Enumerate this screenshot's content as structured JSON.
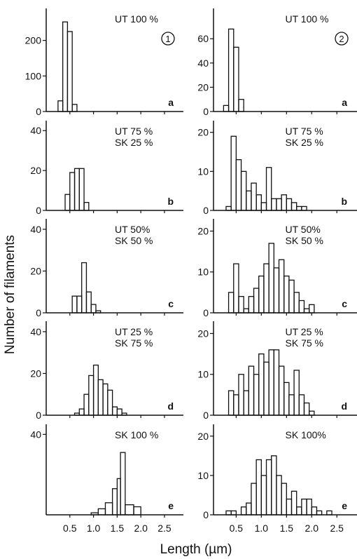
{
  "figure": {
    "y_axis_title": "Number of filaments",
    "x_axis_title": "Length (µm)"
  },
  "chart_data": [
    {
      "type": "bar",
      "figure_number": "1",
      "letter": "a",
      "label_lines": [
        "UT  100 %"
      ],
      "xlim": [
        0.0,
        2.9
      ],
      "ylim": [
        0,
        290
      ],
      "yticks": [
        0,
        100,
        200
      ],
      "xticks": [
        "0.5",
        "1.0",
        "1.5",
        "2.0",
        "2.5"
      ],
      "show_xticks": false,
      "bin_edges": [
        0.25,
        0.35,
        0.45,
        0.55,
        0.65
      ],
      "values": [
        30,
        252,
        225,
        20
      ]
    },
    {
      "type": "bar",
      "figure_number": "",
      "letter": "b",
      "label_lines": [
        "UT 75 %",
        "SK 25 %"
      ],
      "xlim": [
        0.0,
        2.9
      ],
      "ylim": [
        0,
        45
      ],
      "yticks": [
        0,
        20,
        40
      ],
      "xticks": [
        "0.5",
        "1.0",
        "1.5",
        "2.0",
        "2.5"
      ],
      "show_xticks": false,
      "bin_edges": [
        0.4,
        0.5,
        0.6,
        0.7,
        0.8,
        0.9
      ],
      "values": [
        8,
        19,
        21,
        21,
        4
      ]
    },
    {
      "type": "bar",
      "figure_number": "",
      "letter": "c",
      "label_lines": [
        "UT  50%",
        "SK  50 %"
      ],
      "xlim": [
        0.0,
        2.9
      ],
      "ylim": [
        0,
        45
      ],
      "yticks": [
        0,
        20,
        40
      ],
      "xticks": [
        "0.5",
        "1.0",
        "1.5",
        "2.0",
        "2.5"
      ],
      "show_xticks": false,
      "bin_edges": [
        0.55,
        0.65,
        0.75,
        0.85,
        0.95,
        1.05,
        1.15
      ],
      "values": [
        8,
        8,
        24,
        10,
        4,
        1
      ]
    },
    {
      "type": "bar",
      "figure_number": "",
      "letter": "d",
      "label_lines": [
        "UT  25 %",
        "SK  75 %"
      ],
      "xlim": [
        0.0,
        2.9
      ],
      "ylim": [
        0,
        45
      ],
      "yticks": [
        0,
        20,
        40
      ],
      "xticks": [
        "0.5",
        "1.0",
        "1.5",
        "2.0",
        "2.5"
      ],
      "show_xticks": false,
      "bin_edges": [
        0.6,
        0.7,
        0.8,
        0.9,
        1.0,
        1.1,
        1.2,
        1.3,
        1.4,
        1.5,
        1.6,
        1.7
      ],
      "values": [
        1,
        3,
        10,
        19,
        24,
        17,
        15,
        12,
        4,
        3,
        1
      ]
    },
    {
      "type": "bar",
      "figure_number": "",
      "letter": "e",
      "label_lines": [
        "SK  100 %"
      ],
      "xlim": [
        0.0,
        2.9
      ],
      "ylim": [
        0,
        45
      ],
      "yticks": [
        40
      ],
      "xticks": [
        "0.5",
        "1.0",
        "1.5",
        "2.0",
        "2.5"
      ],
      "show_xticks": true,
      "bin_edges": [
        0.95,
        1.1,
        1.25,
        1.4,
        1.5,
        1.57,
        1.67,
        1.85,
        2.0
      ],
      "values": [
        1,
        3,
        6,
        13,
        18,
        31,
        5,
        4
      ]
    },
    {
      "type": "bar",
      "figure_number": "2",
      "letter": "a",
      "label_lines": [
        "UT  100 %"
      ],
      "xlim": [
        0.05,
        2.9
      ],
      "ylim": [
        0,
        85
      ],
      "yticks": [
        0,
        20,
        40,
        60
      ],
      "xticks": [
        "0.5",
        "1.0",
        "1.5",
        "2.0",
        "2.5"
      ],
      "show_xticks": false,
      "bin_edges": [
        0.25,
        0.35,
        0.45,
        0.55,
        0.65
      ],
      "values": [
        5,
        68,
        53,
        10
      ]
    },
    {
      "type": "bar",
      "figure_number": "",
      "letter": "b",
      "label_lines": [
        "UT 75 %",
        "SK 25 %"
      ],
      "xlim": [
        0.05,
        2.9
      ],
      "ylim": [
        0,
        23
      ],
      "yticks": [
        0,
        10,
        20
      ],
      "xticks": [
        "0.5",
        "1.0",
        "1.5",
        "2.0",
        "2.5"
      ],
      "show_xticks": false,
      "bin_edges": [
        0.3,
        0.4,
        0.5,
        0.6,
        0.7,
        0.8,
        0.9,
        1.0,
        1.1,
        1.2,
        1.3,
        1.4,
        1.5,
        1.6,
        1.7,
        1.8,
        1.9
      ],
      "values": [
        1,
        19,
        13,
        10,
        5,
        7,
        4,
        2,
        11,
        3,
        3,
        4,
        3,
        2,
        1,
        1
      ]
    },
    {
      "type": "bar",
      "figure_number": "",
      "letter": "c",
      "label_lines": [
        "UT  50%",
        "SK  50 %"
      ],
      "xlim": [
        0.05,
        2.9
      ],
      "ylim": [
        0,
        23
      ],
      "yticks": [
        0,
        10,
        20
      ],
      "xticks": [
        "0.5",
        "1.0",
        "1.5",
        "2.0",
        "2.5"
      ],
      "show_xticks": false,
      "bin_edges": [
        0.35,
        0.45,
        0.55,
        0.65,
        0.75,
        0.85,
        0.95,
        1.05,
        1.15,
        1.25,
        1.35,
        1.45,
        1.55,
        1.65,
        1.75,
        1.85,
        1.95,
        2.05
      ],
      "values": [
        5,
        12,
        4,
        1,
        4,
        6,
        9,
        12,
        17,
        11,
        13,
        9,
        8,
        5,
        3,
        1,
        2
      ]
    },
    {
      "type": "bar",
      "figure_number": "",
      "letter": "d",
      "label_lines": [
        "UT  25 %",
        "SK  75 %"
      ],
      "xlim": [
        0.05,
        2.9
      ],
      "ylim": [
        0,
        23
      ],
      "yticks": [
        0,
        10,
        20
      ],
      "xticks": [
        "0.5",
        "1.0",
        "1.5",
        "2.0",
        "2.5"
      ],
      "show_xticks": false,
      "bin_edges": [
        0.35,
        0.45,
        0.55,
        0.65,
        0.75,
        0.85,
        0.95,
        1.05,
        1.15,
        1.25,
        1.35,
        1.45,
        1.55,
        1.65,
        1.75,
        1.85,
        1.95,
        2.05
      ],
      "values": [
        6,
        5,
        10,
        6,
        12,
        10,
        15,
        13,
        16,
        16,
        12,
        8,
        5,
        11,
        5,
        3,
        1
      ]
    },
    {
      "type": "bar",
      "figure_number": "",
      "letter": "e",
      "label_lines": [
        "SK  100%"
      ],
      "xlim": [
        0.05,
        2.9
      ],
      "ylim": [
        0,
        23
      ],
      "yticks": [
        0,
        10,
        20
      ],
      "xticks": [
        "0.5",
        "1.0",
        "1.5",
        "2.0",
        "2.5"
      ],
      "show_xticks": true,
      "bin_edges": [
        0.3,
        0.4,
        0.5,
        0.6,
        0.7,
        0.8,
        0.9,
        1.0,
        1.1,
        1.2,
        1.3,
        1.4,
        1.5,
        1.6,
        1.7,
        1.8,
        1.9,
        2.0,
        2.1,
        2.2,
        2.3,
        2.4,
        2.5
      ],
      "values": [
        1,
        1,
        0,
        2,
        3,
        8,
        14,
        10,
        14,
        15,
        10,
        8,
        4,
        6,
        2,
        4,
        4,
        2,
        1,
        0,
        1,
        0
      ]
    }
  ]
}
